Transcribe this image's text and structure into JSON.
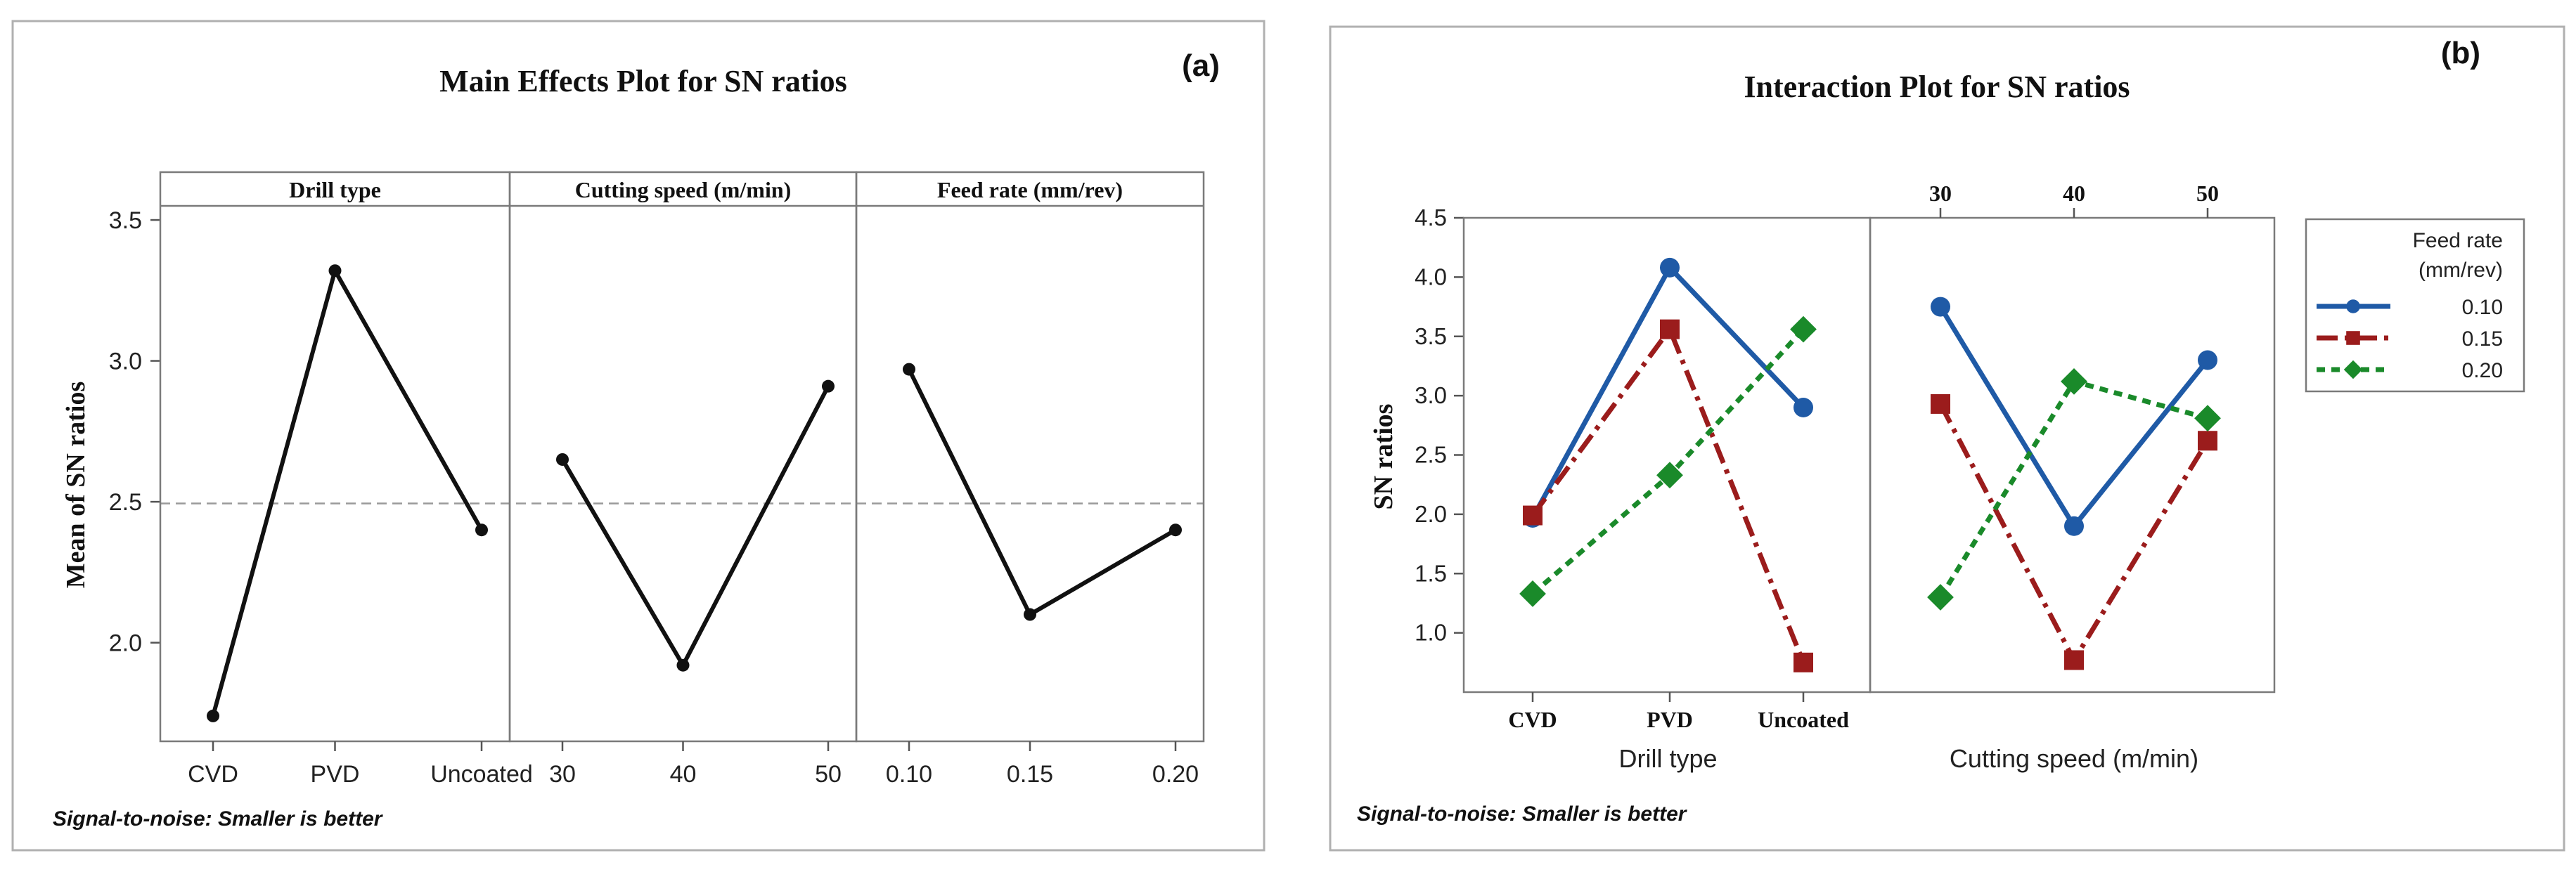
{
  "chart_data": [
    {
      "type": "line",
      "panel_label": "(a)",
      "title": "Main Effects Plot for SN ratios",
      "ylabel": "Mean of SN ratios",
      "ylim": [
        1.65,
        3.55
      ],
      "yticks": [
        "2.0",
        "2.5",
        "3.0",
        "3.5"
      ],
      "reference_line": 2.494,
      "footnote": "Signal-to-noise: Smaller is better",
      "facets": [
        {
          "name": "Drill type",
          "categories": [
            "CVD",
            "PVD",
            "Uncoated"
          ],
          "values": [
            1.74,
            3.32,
            2.4
          ]
        },
        {
          "name": "Cutting speed (m/min)",
          "categories": [
            "30",
            "40",
            "50"
          ],
          "values": [
            2.65,
            1.92,
            2.91
          ]
        },
        {
          "name": "Feed rate (mm/rev)",
          "categories": [
            "0.10",
            "0.15",
            "0.20"
          ],
          "values": [
            2.97,
            2.1,
            2.4
          ]
        }
      ]
    },
    {
      "type": "line",
      "panel_label": "(b)",
      "title": "Interaction Plot for SN ratios",
      "ylabel": "SN ratios",
      "ylim": [
        0.5,
        4.5
      ],
      "yticks": [
        "1.0",
        "1.5",
        "2.0",
        "2.5",
        "3.0",
        "3.5",
        "4.0",
        "4.5"
      ],
      "footnote": "Signal-to-noise: Smaller is better",
      "legend": {
        "title_line1": "Feed rate",
        "title_line2": "(mm/rev)",
        "position": "right"
      },
      "facets": [
        {
          "xlabel": "Drill type",
          "categories": [
            "CVD",
            "PVD",
            "Uncoated"
          ],
          "tick_position": "bottom"
        },
        {
          "xlabel": "Cutting speed (m/min)",
          "categories": [
            "30",
            "40",
            "50"
          ],
          "tick_position": "top"
        }
      ],
      "series": [
        {
          "name": "0.10",
          "color": "#1f5aa6",
          "marker": "circle",
          "dash": "solid",
          "values": [
            [
              1.97,
              4.08,
              2.9
            ],
            [
              3.75,
              1.9,
              3.3
            ]
          ]
        },
        {
          "name": "0.15",
          "color": "#9b1c1c",
          "marker": "square",
          "dash": "dashdot",
          "values": [
            [
              1.99,
              3.56,
              0.75
            ],
            [
              2.93,
              0.77,
              2.62
            ]
          ]
        },
        {
          "name": "0.20",
          "color": "#1a8a2a",
          "marker": "diamond",
          "dash": "dotted",
          "values": [
            [
              1.33,
              2.33,
              3.56
            ],
            [
              1.3,
              3.12,
              2.81
            ]
          ]
        }
      ]
    }
  ]
}
